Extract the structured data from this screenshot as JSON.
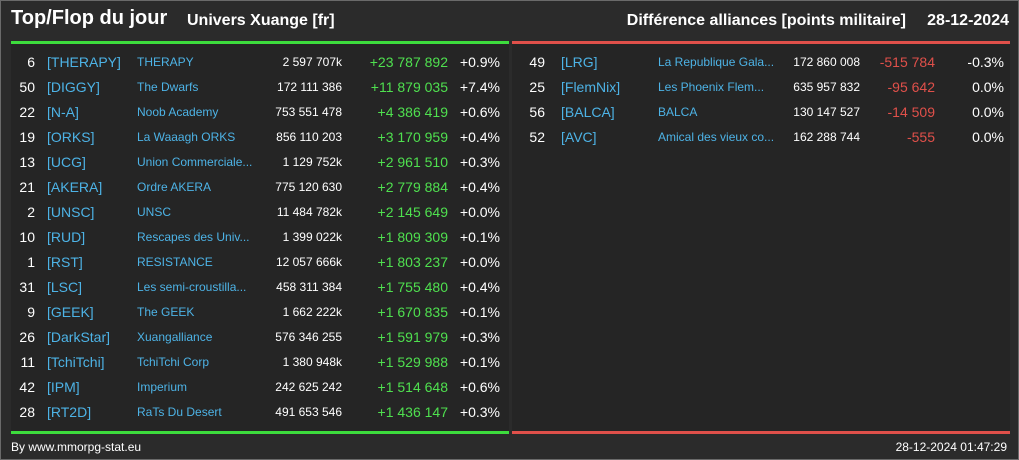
{
  "header": {
    "title": "Top/Flop du jour",
    "universe": "Univers Xuange [fr]",
    "subtitle": "Différence alliances [points militaire]",
    "date": "28-12-2024"
  },
  "colors": {
    "positive": "#4fe04f",
    "negative": "#e0504a",
    "link": "#4db3e6",
    "top_bar": "#3ddc3d",
    "flop_bar": "#e0504a"
  },
  "top": [
    {
      "rank": "6",
      "tag": "[THERAPY]",
      "name": "THERAPY",
      "points": "2 597 707k",
      "diff": "+23 787 892",
      "pct": "+0.9%"
    },
    {
      "rank": "50",
      "tag": "[DIGGY]",
      "name": "The Dwarfs",
      "points": "172 111 386",
      "diff": "+11 879 035",
      "pct": "+7.4%"
    },
    {
      "rank": "22",
      "tag": "[N-A]",
      "name": "Noob Academy",
      "points": "753 551 478",
      "diff": "+4 386 419",
      "pct": "+0.6%"
    },
    {
      "rank": "19",
      "tag": "[ORKS]",
      "name": "La Waaagh ORKS",
      "points": "856 110 203",
      "diff": "+3 170 959",
      "pct": "+0.4%"
    },
    {
      "rank": "13",
      "tag": "[UCG]",
      "name": "Union Commerciale...",
      "points": "1 129 752k",
      "diff": "+2 961 510",
      "pct": "+0.3%"
    },
    {
      "rank": "21",
      "tag": "[AKERA]",
      "name": "Ordre AKERA",
      "points": "775 120 630",
      "diff": "+2 779 884",
      "pct": "+0.4%"
    },
    {
      "rank": "2",
      "tag": "[UNSC]",
      "name": "UNSC",
      "points": "11 484 782k",
      "diff": "+2 145 649",
      "pct": "+0.0%"
    },
    {
      "rank": "10",
      "tag": "[RUD]",
      "name": "Rescapes des Univ...",
      "points": "1 399 022k",
      "diff": "+1 809 309",
      "pct": "+0.1%"
    },
    {
      "rank": "1",
      "tag": "[RST]",
      "name": "RESISTANCE",
      "points": "12 057 666k",
      "diff": "+1 803 237",
      "pct": "+0.0%"
    },
    {
      "rank": "31",
      "tag": "[LSC]",
      "name": "Les semi-croustilla...",
      "points": "458 311 384",
      "diff": "+1 755 480",
      "pct": "+0.4%"
    },
    {
      "rank": "9",
      "tag": "[GEEK]",
      "name": "The GEEK",
      "points": "1 662 222k",
      "diff": "+1 670 835",
      "pct": "+0.1%"
    },
    {
      "rank": "26",
      "tag": "[DarkStar]",
      "name": "Xuangalliance",
      "points": "576 346 255",
      "diff": "+1 591 979",
      "pct": "+0.3%"
    },
    {
      "rank": "11",
      "tag": "[TchiTchi]",
      "name": "TchiTchi Corp",
      "points": "1 380 948k",
      "diff": "+1 529 988",
      "pct": "+0.1%"
    },
    {
      "rank": "42",
      "tag": "[IPM]",
      "name": "Imperium",
      "points": "242 625 242",
      "diff": "+1 514 648",
      "pct": "+0.6%"
    },
    {
      "rank": "28",
      "tag": "[RT2D]",
      "name": "RaTs Du Desert",
      "points": "491 653 546",
      "diff": "+1 436 147",
      "pct": "+0.3%"
    }
  ],
  "flop": [
    {
      "rank": "49",
      "tag": "[LRG]",
      "name": "La Republique Gala...",
      "points": "172 860 008",
      "diff": "-515 784",
      "pct": "-0.3%"
    },
    {
      "rank": "25",
      "tag": "[FlemNix]",
      "name": "Les Phoenix Flem...",
      "points": "635 957 832",
      "diff": "-95 642",
      "pct": "0.0%"
    },
    {
      "rank": "56",
      "tag": "[BALCA]",
      "name": "BALCA",
      "points": "130 147 527",
      "diff": "-14 509",
      "pct": "0.0%"
    },
    {
      "rank": "52",
      "tag": "[AVC]",
      "name": "Amical des vieux co...",
      "points": "162 288 744",
      "diff": "-555",
      "pct": "0.0%"
    }
  ],
  "footer": {
    "credit": "By www.mmorpg-stat.eu",
    "timestamp": "28-12-2024 01:47:29"
  }
}
